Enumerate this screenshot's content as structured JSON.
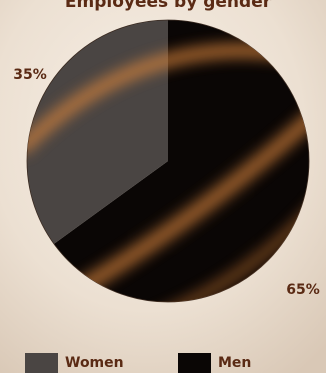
{
  "chart_data": {
    "type": "pie",
    "title": "Employees by gender",
    "categories": [
      "Women",
      "Men"
    ],
    "values": [
      35,
      65
    ],
    "value_labels": [
      "35%",
      "65%"
    ],
    "colors": [
      "#4a4543",
      "#0a0605"
    ],
    "legend": "bottom"
  }
}
